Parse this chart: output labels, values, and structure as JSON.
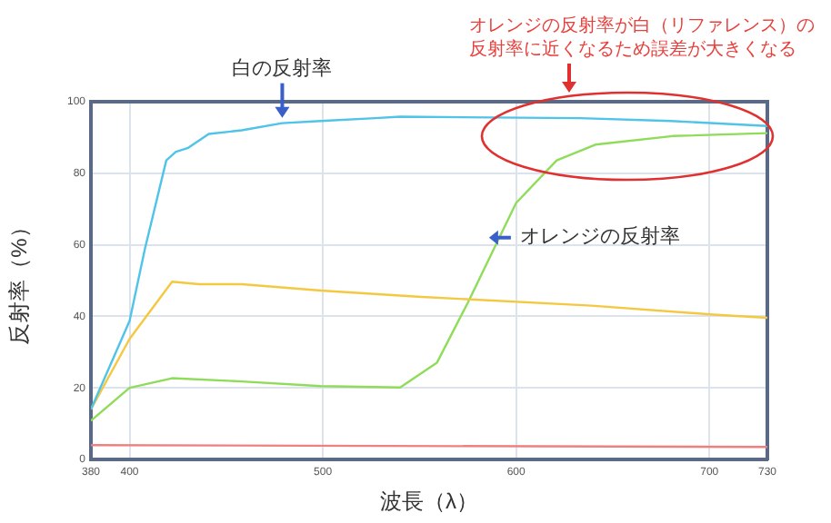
{
  "chart_data": {
    "type": "line",
    "xlabel": "波長（λ）",
    "ylabel": "反射率（%）",
    "xlim": [
      380,
      730
    ],
    "xticks": [
      380,
      400,
      500,
      600,
      700,
      730
    ],
    "ylim": [
      0,
      100
    ],
    "yticks": [
      0,
      20,
      40,
      60,
      80,
      100
    ],
    "grid": true,
    "marker": "none",
    "line_style": "solid",
    "series": [
      {
        "color": "#4fc3e8",
        "x": [
          380,
          400,
          408,
          419,
          424,
          430,
          441,
          458,
          479,
          499,
          527,
          540,
          633,
          680,
          730
        ],
        "values": [
          14,
          38.7,
          59,
          83.6,
          86,
          87,
          91,
          92,
          94,
          94.6,
          95.4,
          95.8,
          95.4,
          94.6,
          93.2
        ]
      },
      {
        "color": "#f5c842",
        "x": [
          380,
          400,
          422,
          436,
          458,
          499,
          549,
          639,
          702,
          730
        ],
        "values": [
          14,
          33.7,
          49.7,
          49,
          49,
          47.2,
          45.5,
          43,
          40.5,
          39.6
        ]
      },
      {
        "color": "#8fdc5a",
        "x": [
          380,
          400,
          422,
          458,
          499,
          540,
          559,
          575,
          600,
          621,
          641,
          681,
          730
        ],
        "values": [
          10.8,
          20,
          22.7,
          21.8,
          20.5,
          20.1,
          27,
          43.8,
          71.7,
          83.6,
          88,
          90.4,
          91.2
        ]
      },
      {
        "color": "#f08080",
        "x": [
          380,
          730
        ],
        "values": [
          4,
          3.5
        ]
      }
    ],
    "annotations": [
      {
        "text": "白の反射率",
        "x": 479,
        "y": 94
      },
      {
        "text": "オレンジの反射率",
        "x": 586,
        "y": 62
      },
      "オレンジの反射率が白（リファレンス）の",
      "反射率に近くなるため誤差が大きくなる"
    ]
  }
}
